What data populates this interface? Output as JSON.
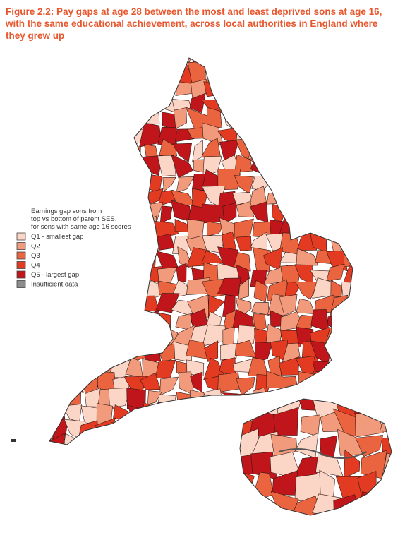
{
  "title_lines": [
    "Figure 2.2: Pay gaps at age 28 between the most and least deprived sons at age 16,",
    "with the same educational achievement, across local authorities in England where",
    "they grew up"
  ],
  "legend": {
    "title_lines": [
      "Earnings gap sons from",
      "top vs bottom of parent SES,",
      "for sons with same age 16 scores"
    ],
    "items": [
      {
        "label": "Q1  - smallest gap",
        "color": "#fbd6c7"
      },
      {
        "label": "Q2",
        "color": "#f29a7c"
      },
      {
        "label": "Q3",
        "color": "#eb6440"
      },
      {
        "label": "Q4",
        "color": "#e33a22"
      },
      {
        "label": "Q5 - largest gap",
        "color": "#bf151b"
      },
      {
        "label": "Insufficient data",
        "color": "#8c8c8c"
      }
    ]
  }
}
